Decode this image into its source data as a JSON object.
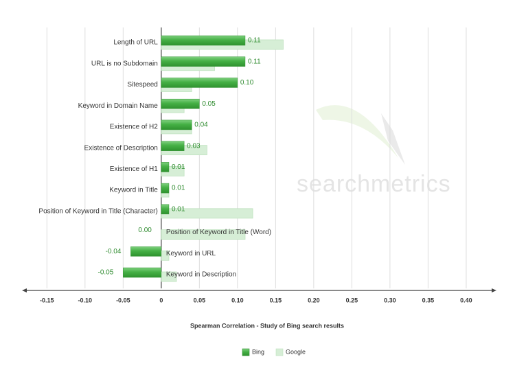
{
  "watermark": "searchmetrics",
  "chart_data": {
    "type": "hbar",
    "x_label": "Spearman Correlation - Study of Bing search results",
    "categories": [
      "Length of URL",
      "URL is no Subdomain",
      "Sitespeed",
      "Keyword in Domain Name",
      "Existence of H2",
      "Existence of Description",
      "Existence of H1",
      "Keyword in Title",
      "Position of Keyword in Title (Character)",
      "Position of Keyword in Title (Word)",
      "Keyword in URL",
      "Keyword in Description"
    ],
    "series": [
      {
        "name": "Bing",
        "color": "#3da83d",
        "values": [
          0.11,
          0.11,
          0.1,
          0.05,
          0.04,
          0.03,
          0.01,
          0.01,
          0.01,
          0.0,
          -0.04,
          -0.05
        ],
        "value_labels": [
          "0.11",
          "0.11",
          "0.10",
          "0.05",
          "0.04",
          "0.03",
          "0.01",
          "0.01",
          "0.01",
          "0.00",
          "-0.04",
          "-0.05"
        ]
      },
      {
        "name": "Google",
        "color": "#d6eed6",
        "values": [
          0.16,
          0.07,
          0.04,
          0.03,
          0.04,
          0.06,
          0.03,
          0.01,
          0.12,
          0.11,
          0.01,
          0.02
        ]
      }
    ],
    "xlim": [
      -0.18,
      0.437
    ],
    "xticks": [
      -0.15,
      {
        "value": -0.1,
        "label": "-0.10"
      },
      -0.05,
      0,
      0.05,
      {
        "value": 0.1,
        "label": "0.10"
      },
      0.15,
      {
        "value": 0.2,
        "label": "0.20"
      },
      0.25,
      {
        "value": 0.3,
        "label": "0.30"
      },
      0.35,
      {
        "value": 0.4,
        "label": "0.40"
      }
    ],
    "grid": true
  }
}
